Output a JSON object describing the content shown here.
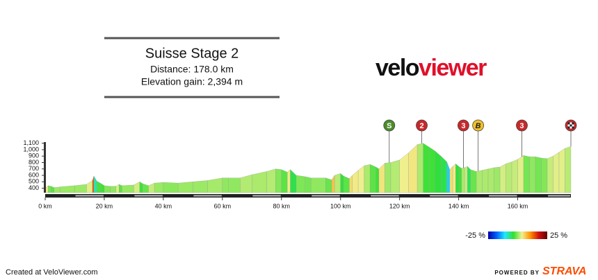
{
  "header": {
    "title": "Suisse Stage 2",
    "distance": "Distance: 178.0 km",
    "elevation": "Elevation gain: 2,394 m"
  },
  "logo": {
    "part1": "velo",
    "part2": "viewer"
  },
  "footer": {
    "created": "Created at VeloViewer.com",
    "powered": "POWERED BY",
    "brand": "STRAVA"
  },
  "chart_data": {
    "type": "elevation-profile",
    "series": [
      {
        "name": "Elevation",
        "x": [
          0,
          1,
          2,
          3,
          5,
          10,
          14,
          16,
          16.5,
          17.5,
          19,
          20,
          22,
          24,
          25,
          26,
          30,
          32,
          33,
          35,
          37,
          40,
          45,
          50,
          55,
          60,
          62,
          66,
          70,
          75,
          78,
          80,
          82,
          83,
          85,
          88,
          90,
          95,
          97,
          98,
          100,
          101,
          103,
          104,
          106,
          108,
          110,
          112,
          113,
          115,
          117,
          120,
          123,
          126,
          128,
          130,
          132,
          134,
          136,
          137,
          138,
          139,
          140,
          141,
          142,
          143,
          144,
          146,
          148,
          150,
          152,
          154,
          156,
          158,
          160,
          162,
          164,
          166,
          168,
          170,
          172,
          174,
          176,
          178
        ],
        "values": [
          400,
          440,
          430,
          410,
          420,
          440,
          460,
          520,
          590,
          510,
          470,
          440,
          430,
          430,
          460,
          440,
          450,
          500,
          470,
          440,
          480,
          490,
          480,
          500,
          520,
          560,
          560,
          560,
          610,
          660,
          700,
          690,
          650,
          690,
          600,
          580,
          560,
          560,
          530,
          600,
          630,
          590,
          550,
          600,
          680,
          750,
          770,
          730,
          700,
          790,
          800,
          840,
          950,
          1080,
          1100,
          1040,
          980,
          900,
          810,
          690,
          740,
          780,
          740,
          710,
          720,
          740,
          690,
          660,
          680,
          700,
          720,
          730,
          780,
          810,
          850,
          910,
          890,
          890,
          870,
          860,
          900,
          960,
          1020,
          1050
        ]
      }
    ],
    "xlim": [
      0,
      178
    ],
    "ylim": [
      330,
      1140
    ],
    "xticks": [
      {
        "value": 0,
        "label": "0 km"
      },
      {
        "value": 20,
        "label": "20 km"
      },
      {
        "value": 40,
        "label": "40 km"
      },
      {
        "value": 60,
        "label": "60 km"
      },
      {
        "value": 80,
        "label": "80 km"
      },
      {
        "value": 100,
        "label": "100 km"
      },
      {
        "value": 120,
        "label": "120 km"
      },
      {
        "value": 140,
        "label": "140 km"
      },
      {
        "value": 160,
        "label": "160 km"
      }
    ],
    "yticks": [
      400,
      500,
      600,
      700,
      800,
      900,
      {
        "value": 1000,
        "label": "1,000"
      },
      {
        "value": 1100,
        "label": "1,100"
      }
    ],
    "markers": [
      {
        "label": "S",
        "x": 116.5,
        "color": "#4c8c2c"
      },
      {
        "label": "2",
        "x": 127.5,
        "color": "#c8282a"
      },
      {
        "label": "3",
        "x": 141.6,
        "color": "#c8282a"
      },
      {
        "label": "B",
        "x": 146.6,
        "color": "#f0c028"
      },
      {
        "label": "3",
        "x": 161.4,
        "color": "#c8282a"
      },
      {
        "kind": "finish",
        "x": 178,
        "color": "#c8282a"
      }
    ],
    "colorscale": {
      "ticks": [
        {
          "value": -25,
          "label": "-25 %"
        },
        {
          "value": 25,
          "label": "25 %"
        }
      ],
      "colors": [
        "#0000a8",
        "#0060ff",
        "#20e8ff",
        "#30e030",
        "#f0f090",
        "#ff9000",
        "#d01010",
        "#600000"
      ]
    }
  }
}
